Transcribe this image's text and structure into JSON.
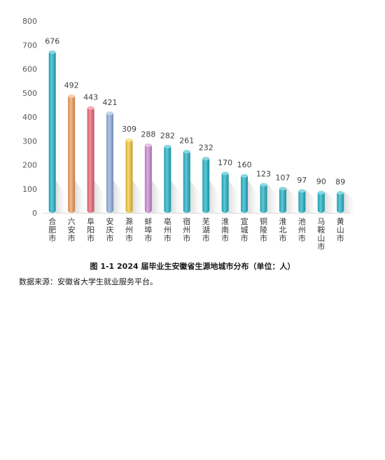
{
  "chart_data": {
    "type": "bar",
    "categories": [
      "合肥市",
      "六安市",
      "阜阳市",
      "安庆市",
      "滁州市",
      "蚌埠市",
      "亳州市",
      "宿州市",
      "芜湖市",
      "淮南市",
      "宣城市",
      "铜陵市",
      "淮北市",
      "池州市",
      "马鞍山市",
      "黄山市"
    ],
    "values": [
      676,
      492,
      443,
      421,
      309,
      288,
      282,
      261,
      232,
      170,
      160,
      123,
      107,
      97,
      90,
      89
    ],
    "colors": [
      "#25b7c9",
      "#f5a15e",
      "#f06b76",
      "#92b4e0",
      "#f7cc3a",
      "#d28ed8",
      "#25b7c9",
      "#25b7c9",
      "#25b7c9",
      "#25b7c9",
      "#25b7c9",
      "#25b7c9",
      "#25b7c9",
      "#25b7c9",
      "#25b7c9",
      "#25b7c9"
    ],
    "yticks": [
      0,
      100,
      200,
      300,
      400,
      500,
      600,
      700,
      800
    ],
    "ylim": [
      0,
      800
    ],
    "title": "图 1-1   2024 届毕业生安徽省生源地城市分布（单位：人）",
    "xlabel": "",
    "ylabel": "",
    "grid": false
  },
  "caption": "图 1-1   2024 届毕业生安徽省生源地城市分布（单位：人）",
  "source": "数据来源：安徽省大学生就业服务平台。"
}
